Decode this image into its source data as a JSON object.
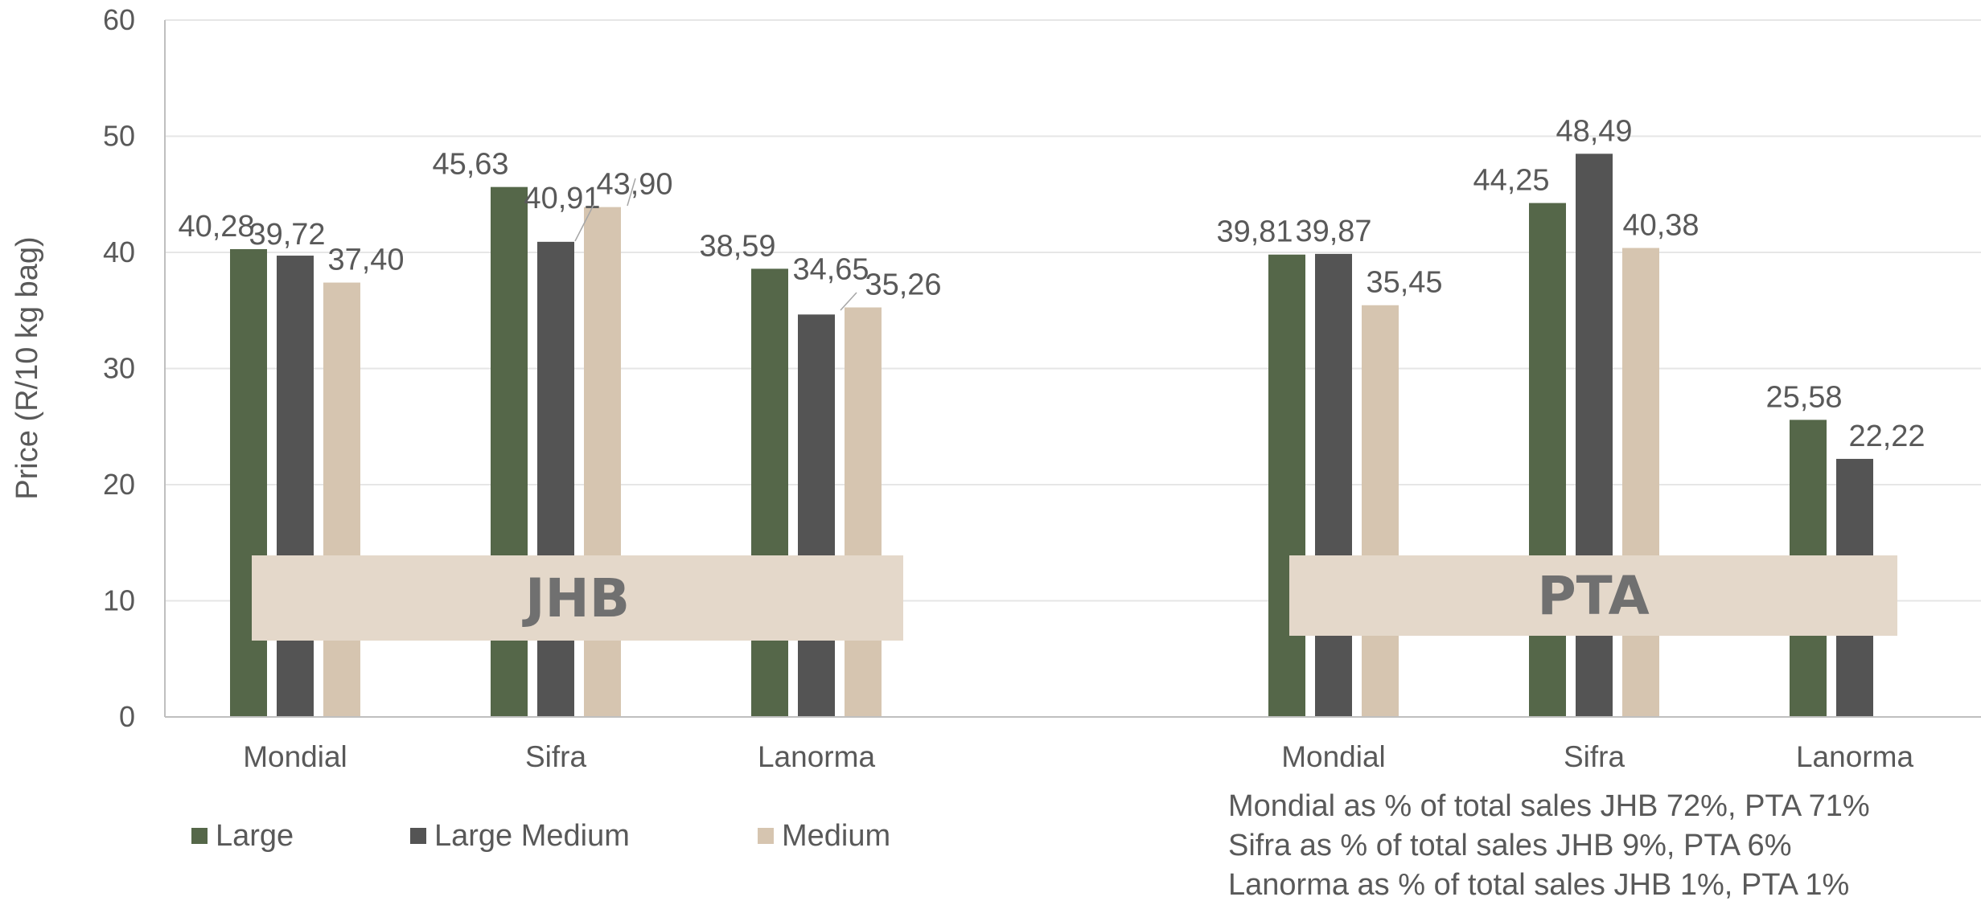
{
  "chart_data": {
    "type": "bar",
    "ylabel": "Price (R/10 kg bag)",
    "ylim": [
      0,
      60
    ],
    "yticks": [
      "0",
      "10",
      "20",
      "30",
      "40",
      "50",
      "60"
    ],
    "grid": true,
    "legend_position": "bottom-left",
    "groups": [
      {
        "label": "JHB",
        "categories": [
          "Mondial",
          "Sifra",
          "Lanorma"
        ],
        "series": [
          {
            "name": "Large",
            "values": [
              40.28,
              45.63,
              38.59
            ],
            "labels": [
              "40,28",
              "45,63",
              "38,59"
            ]
          },
          {
            "name": "Large Medium",
            "values": [
              39.72,
              40.91,
              34.65
            ],
            "labels": [
              "39,72",
              "40,91",
              "34,65"
            ]
          },
          {
            "name": "Medium",
            "values": [
              37.4,
              43.9,
              35.26
            ],
            "labels": [
              "37,40",
              "43,90",
              "35,26"
            ]
          }
        ]
      },
      {
        "label": "PTA",
        "categories": [
          "Mondial",
          "Sifra",
          "Lanorma"
        ],
        "series": [
          {
            "name": "Large",
            "values": [
              39.81,
              44.25,
              25.58
            ],
            "labels": [
              "39,81",
              "44,25",
              "25,58"
            ]
          },
          {
            "name": "Large Medium",
            "values": [
              39.87,
              48.49,
              22.22
            ],
            "labels": [
              "39,87",
              "48,49",
              "22,22"
            ]
          },
          {
            "name": "Medium",
            "values": [
              35.45,
              40.38,
              null
            ],
            "labels": [
              "35,45",
              "40,38",
              null
            ]
          }
        ]
      }
    ],
    "legend": [
      {
        "name": "Large",
        "color": "#556749"
      },
      {
        "name": "Large Medium",
        "color": "#545454"
      },
      {
        "name": "Medium",
        "color": "#D6C5B0"
      }
    ],
    "annotations": [
      "Mondial as % of total sales JHB 72%, PTA 71%",
      "Sifra as % of total sales JHB 9%, PTA 6%",
      "Lanorma as % of total sales JHB 1%, PTA 1%"
    ]
  },
  "colors": {
    "large": "#556749",
    "large_medium": "#545454",
    "medium": "#D6C5B0",
    "group_band": "#E4D8CA",
    "gridline": "#E6E6E6",
    "axis": "#BFBFBF",
    "text": "#595959"
  }
}
